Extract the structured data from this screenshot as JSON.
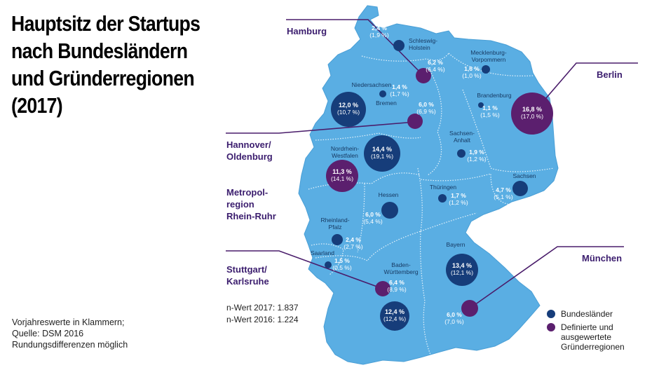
{
  "title": {
    "line1": "Hauptsitz der Startups",
    "line2": "nach Bundesländern",
    "line3": "und Gründerregionen",
    "line4": "(2017)"
  },
  "notes": {
    "line1": "Vorjahreswerte in Klammern;",
    "line2": "Quelle: DSM 2016",
    "line3": "Rundungsdifferenzen möglich"
  },
  "n_values": {
    "line1": "n-Wert 2017: 1.837",
    "line2": "n-Wert 2016: 1.224"
  },
  "legend": {
    "states": "Bundesländer",
    "regions_line1": "Definierte und",
    "regions_line2": "ausgewertete",
    "regions_line3": "Gründerregionen"
  },
  "colors": {
    "map_fill": "#5aaee3",
    "map_border": "#ffffff",
    "state_circle": "#163d7a",
    "region_circle": "#5b1f6e",
    "region_text": "#3b1d6e",
    "callout_line": "#4a1d6b"
  },
  "states": [
    {
      "id": "schleswig-holstein",
      "name": [
        "Schleswig-",
        "Holstein"
      ],
      "value_2017": "2,4 %",
      "value_2016": "(1,9 %)"
    },
    {
      "id": "mecklenburg-vorpommern",
      "name": [
        "Mecklenburg-",
        "Vorpommern"
      ],
      "value_2017": "1,6 %",
      "value_2016": "(1,0 %)"
    },
    {
      "id": "niedersachsen",
      "name": [
        "Niedersachsen"
      ],
      "value_2017": "1,4 %",
      "value_2016": "(1,7 %)"
    },
    {
      "id": "bremen",
      "name": [
        "Bremen"
      ],
      "value_2017": "12,0 %",
      "value_2016": "(10,7 %)"
    },
    {
      "id": "brandenburg",
      "name": [
        "Brandenburg"
      ],
      "value_2017": "1,1 %",
      "value_2016": "(1,5 %)"
    },
    {
      "id": "nordrhein-westfalen",
      "name": [
        "Nordrhein-",
        "Westfalen"
      ],
      "value_2017": "14,4 %",
      "value_2016": "(19,1 %)"
    },
    {
      "id": "sachsen-anhalt",
      "name": [
        "Sachsen-",
        "Anhalt"
      ],
      "value_2017": "1,9 %",
      "value_2016": "(1,2 %)"
    },
    {
      "id": "sachsen",
      "name": [
        "Sachsen"
      ],
      "value_2017": "4,7 %",
      "value_2016": "(5,1 %)"
    },
    {
      "id": "thueringen",
      "name": [
        "Thüringen"
      ],
      "value_2017": "1,7 %",
      "value_2016": "(1,2 %)"
    },
    {
      "id": "hessen",
      "name": [
        "Hessen"
      ],
      "value_2017": "6,0 %",
      "value_2016": "(5,4 %)"
    },
    {
      "id": "rheinland-pfalz",
      "name": [
        "Rheinland-",
        "Pfalz"
      ],
      "value_2017": "2,4 %",
      "value_2016": "(2,7 %)"
    },
    {
      "id": "saarland",
      "name": [
        "Saarland"
      ],
      "value_2017": "1,5 %",
      "value_2016": "(0,5 %)"
    },
    {
      "id": "baden-wuerttemberg",
      "name": [
        "Baden-",
        "Württemberg"
      ],
      "value_2017": "12,4 %",
      "value_2016": "(12,4 %)"
    },
    {
      "id": "bayern",
      "name": [
        "Bayern"
      ],
      "value_2017": "13,4 %",
      "value_2016": "(12,1 %)"
    }
  ],
  "regions": [
    {
      "id": "hamburg",
      "label": [
        "Hamburg"
      ],
      "value_2017": "6,2 %",
      "value_2016": "(6,4 %)"
    },
    {
      "id": "berlin",
      "label": [
        "Berlin"
      ],
      "value_2017": "16,8 %",
      "value_2016": "(17,0 %)"
    },
    {
      "id": "hannover-oldenburg",
      "label": [
        "Hannover/",
        "Oldenburg"
      ],
      "value_2017": "6,0 %",
      "value_2016": "(6,9 %)"
    },
    {
      "id": "metropolregion-rhein-ruhr",
      "label": [
        "Metropol-",
        "region",
        "Rhein-Ruhr"
      ],
      "value_2017": "11,3 %",
      "value_2016": "(14,1 %)"
    },
    {
      "id": "stuttgart-karlsruhe",
      "label": [
        "Stuttgart/",
        "Karlsruhe"
      ],
      "value_2017": "6,4 %",
      "value_2016": "(8,9 %)"
    },
    {
      "id": "muenchen",
      "label": [
        "München"
      ],
      "value_2017": "6,0 %",
      "value_2016": "(7,0 %)"
    }
  ]
}
